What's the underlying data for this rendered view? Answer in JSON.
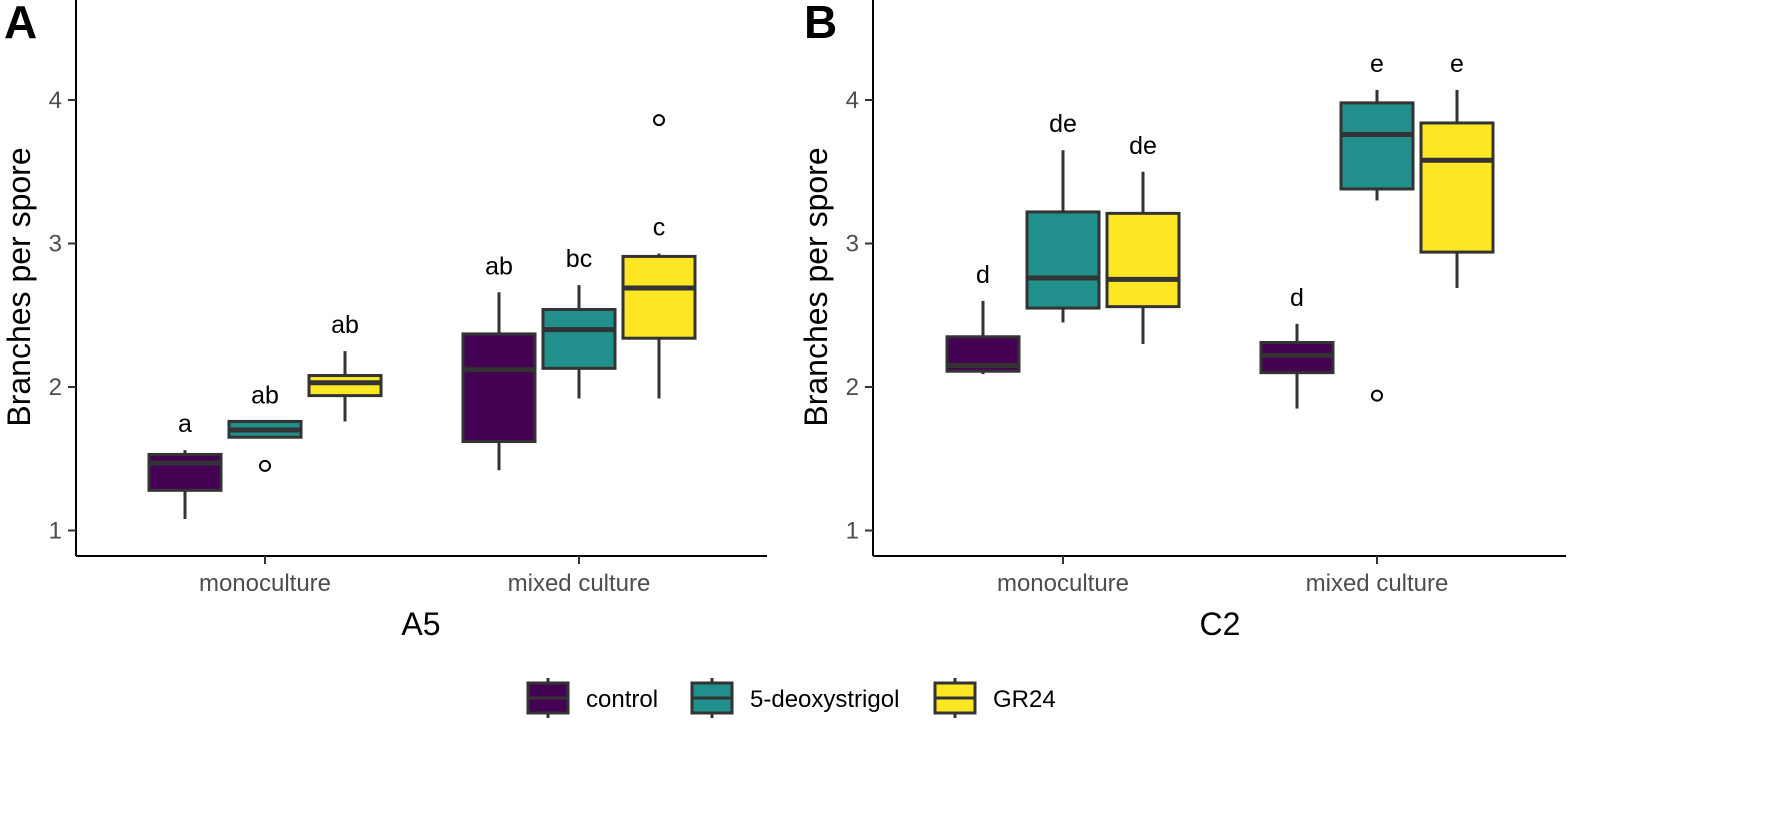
{
  "chart_data": [
    {
      "type": "box",
      "panel": "A",
      "title": "",
      "xlabel": "A5",
      "ylabel": "Branches per spore",
      "ylim": [
        0.9,
        4.6
      ],
      "yticks": [
        1,
        2,
        3,
        4
      ],
      "categories": [
        "monoculture",
        "mixed culture"
      ],
      "series_order": [
        "control",
        "5-deoxystrigol",
        "GR24"
      ],
      "boxes": [
        {
          "category": "monoculture",
          "series": "control",
          "whisker_low": 1.08,
          "q1": 1.28,
          "median": 1.47,
          "q3": 1.53,
          "whisker_high": 1.56,
          "outliers": [],
          "label": "a"
        },
        {
          "category": "monoculture",
          "series": "5-deoxystrigol",
          "whisker_low": 1.65,
          "q1": 1.65,
          "median": 1.7,
          "q3": 1.76,
          "whisker_high": 1.76,
          "outliers": [
            1.45
          ],
          "label": "ab"
        },
        {
          "category": "monoculture",
          "series": "GR24",
          "whisker_low": 1.76,
          "q1": 1.94,
          "median": 2.03,
          "q3": 2.08,
          "whisker_high": 2.25,
          "outliers": [],
          "label": "ab"
        },
        {
          "category": "mixed culture",
          "series": "control",
          "whisker_low": 1.42,
          "q1": 1.62,
          "median": 2.12,
          "q3": 2.37,
          "whisker_high": 2.66,
          "outliers": [],
          "label": "ab"
        },
        {
          "category": "mixed culture",
          "series": "5-deoxystrigol",
          "whisker_low": 1.92,
          "q1": 2.13,
          "median": 2.4,
          "q3": 2.54,
          "whisker_high": 2.71,
          "outliers": [],
          "label": "bc"
        },
        {
          "category": "mixed culture",
          "series": "GR24",
          "whisker_low": 1.92,
          "q1": 2.34,
          "median": 2.69,
          "q3": 2.91,
          "whisker_high": 2.93,
          "outliers": [
            3.86
          ],
          "label": "c"
        }
      ]
    },
    {
      "type": "box",
      "panel": "B",
      "title": "",
      "xlabel": "C2",
      "ylabel": "Branches per spore",
      "ylim": [
        0.9,
        4.6
      ],
      "yticks": [
        1,
        2,
        3,
        4
      ],
      "categories": [
        "monoculture",
        "mixed culture"
      ],
      "series_order": [
        "control",
        "5-deoxystrigol",
        "GR24"
      ],
      "boxes": [
        {
          "category": "monoculture",
          "series": "control",
          "whisker_low": 2.09,
          "q1": 2.11,
          "median": 2.15,
          "q3": 2.35,
          "whisker_high": 2.6,
          "outliers": [],
          "label": "d"
        },
        {
          "category": "monoculture",
          "series": "5-deoxystrigol",
          "whisker_low": 2.45,
          "q1": 2.55,
          "median": 2.76,
          "q3": 3.22,
          "whisker_high": 3.65,
          "outliers": [],
          "label": "de"
        },
        {
          "category": "monoculture",
          "series": "GR24",
          "whisker_low": 2.3,
          "q1": 2.56,
          "median": 2.75,
          "q3": 3.21,
          "whisker_high": 3.5,
          "outliers": [],
          "label": "de"
        },
        {
          "category": "mixed culture",
          "series": "control",
          "whisker_low": 1.85,
          "q1": 2.1,
          "median": 2.22,
          "q3": 2.31,
          "whisker_high": 2.44,
          "outliers": [],
          "label": "d"
        },
        {
          "category": "mixed culture",
          "series": "5-deoxystrigol",
          "whisker_low": 3.3,
          "q1": 3.38,
          "median": 3.76,
          "q3": 3.98,
          "whisker_high": 4.07,
          "outliers": [
            1.94
          ],
          "label": "e"
        },
        {
          "category": "mixed culture",
          "series": "GR24",
          "whisker_low": 2.69,
          "q1": 2.94,
          "median": 3.58,
          "q3": 3.84,
          "whisker_high": 4.07,
          "outliers": [],
          "label": "e"
        }
      ]
    }
  ],
  "legend": {
    "position": "bottom",
    "items": [
      {
        "label": "control",
        "color": "#440154"
      },
      {
        "label": "5-deoxystrigol",
        "color": "#21908C"
      },
      {
        "label": "GR24",
        "color": "#FDE725"
      }
    ]
  },
  "style": {
    "box_stroke": "#333333",
    "axis_color": "#000000"
  }
}
